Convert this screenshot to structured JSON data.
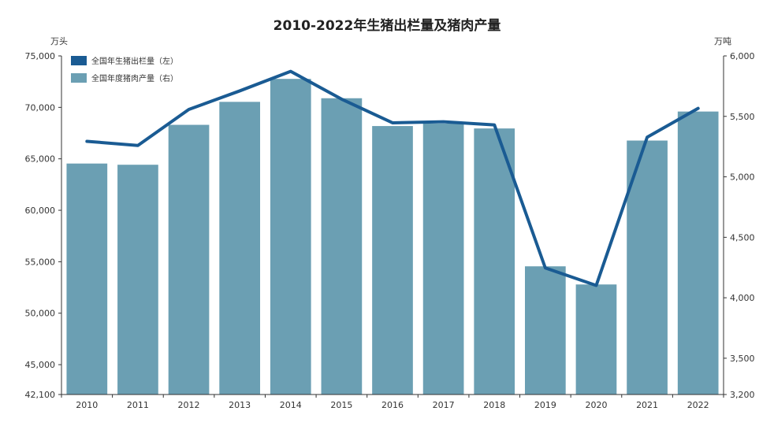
{
  "chart_data": {
    "type": "bar",
    "title": "2010-2022年生猪出栏量及猪肉产量",
    "categories": [
      "2010",
      "2011",
      "2012",
      "2013",
      "2014",
      "2015",
      "2016",
      "2017",
      "2018",
      "2019",
      "2020",
      "2021",
      "2022"
    ],
    "ylabel_left": "万头",
    "ylabel_right": "万吨",
    "ylim_left": [
      42100,
      75000
    ],
    "ylim_right": [
      3200,
      6000
    ],
    "yticks_left": [
      "42,100",
      "45,000",
      "50,000",
      "55,000",
      "60,000",
      "65,000",
      "70,000",
      "75,000"
    ],
    "yticks_left_values": [
      42100,
      45000,
      50000,
      55000,
      60000,
      65000,
      70000,
      75000
    ],
    "yticks_right": [
      "3,200",
      "3,500",
      "4,000",
      "4,500",
      "5,000",
      "5,500",
      "6,000"
    ],
    "yticks_right_values": [
      3200,
      3500,
      4000,
      4500,
      5000,
      5500,
      6000
    ],
    "series": [
      {
        "name": "全国年生猪出栏量（左）",
        "type": "line",
        "axis": "left",
        "values": [
          66700,
          66300,
          69800,
          71600,
          73500,
          70800,
          68500,
          68600,
          68300,
          54400,
          52700,
          67100,
          69900
        ]
      },
      {
        "name": "全国年度猪肉产量（右）",
        "type": "bar",
        "axis": "right",
        "values": [
          5110,
          5100,
          5430,
          5620,
          5810,
          5650,
          5420,
          5440,
          5400,
          4260,
          4110,
          5300,
          5540
        ]
      }
    ],
    "colors": {
      "line": "#1a5b93",
      "bar": "#6b9fb3",
      "axis": "#333333"
    },
    "legend": "top-left",
    "grid": false
  }
}
